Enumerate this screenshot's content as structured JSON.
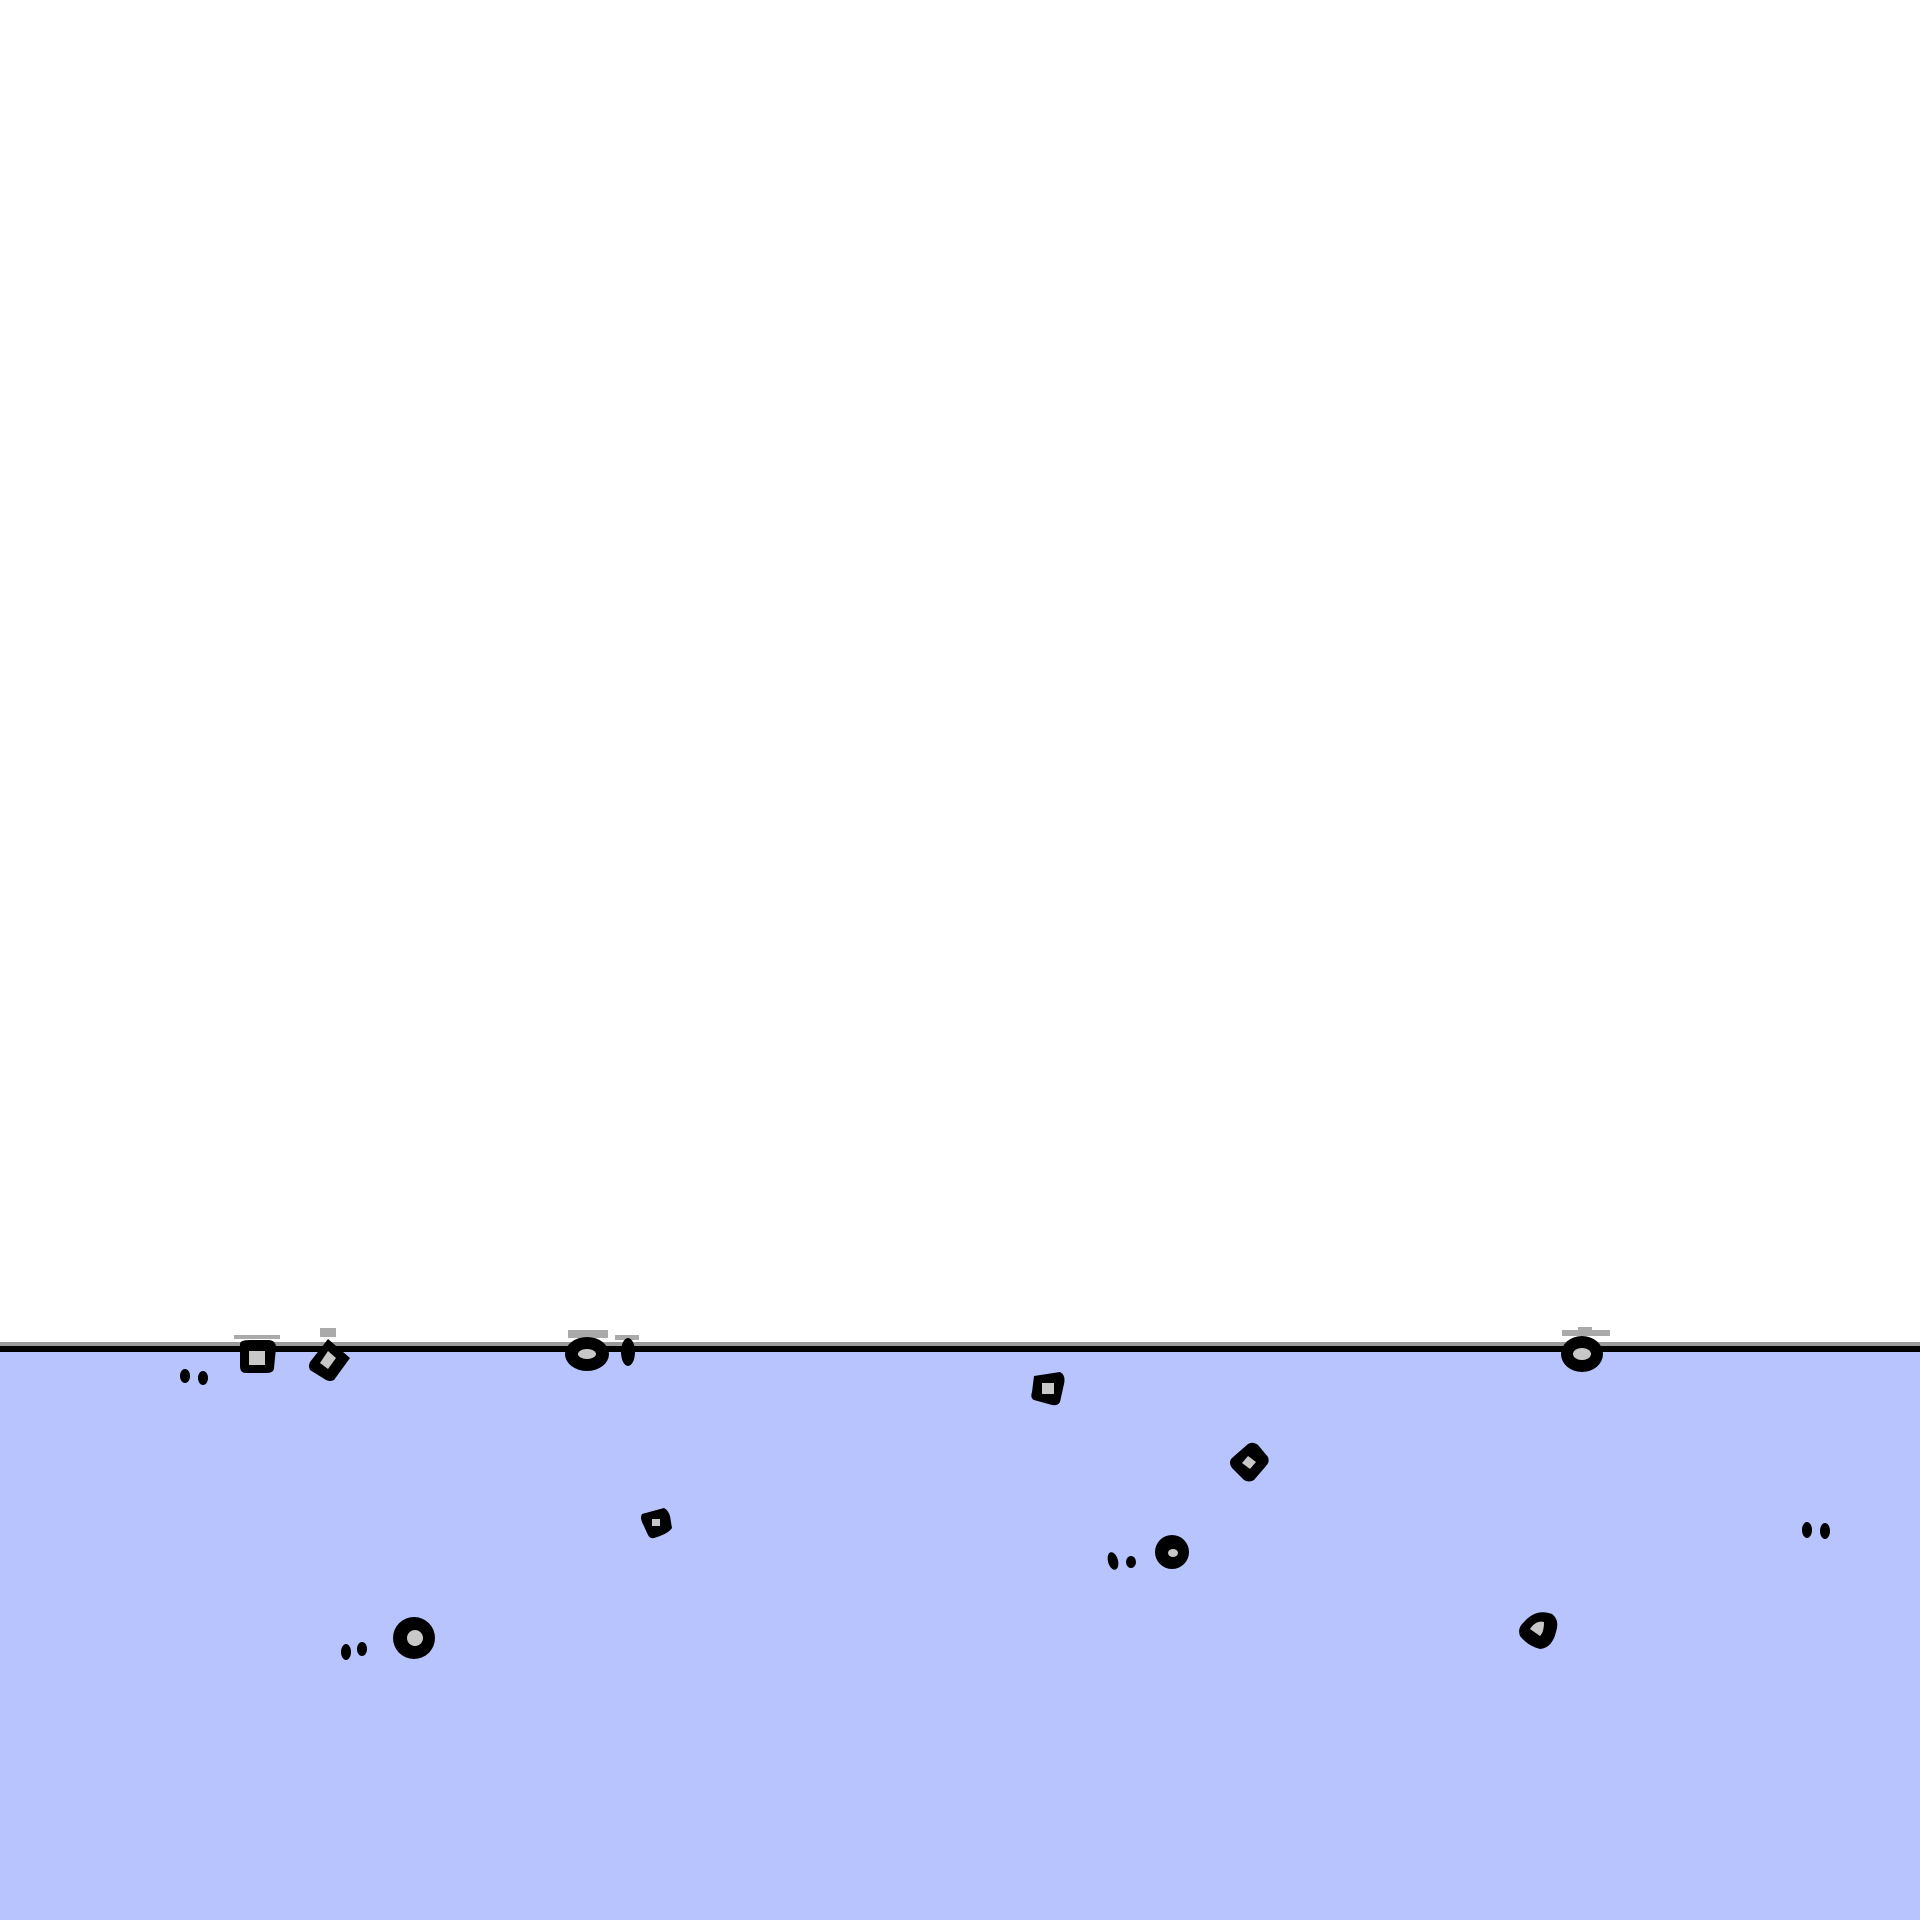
{
  "scene": {
    "sky_color": "#ffffff",
    "water_color": "#b8c4fd",
    "outline_color": "#000000",
    "center_color": "#c8c8c8"
  },
  "objects": [
    {
      "name": "floating-square-creature",
      "kind": "square",
      "state": "floating"
    },
    {
      "name": "floating-diamond-creature",
      "kind": "diamond",
      "state": "floating"
    },
    {
      "name": "floating-oval-creature",
      "kind": "oval",
      "state": "floating"
    },
    {
      "name": "floating-drop-creature",
      "kind": "drop",
      "state": "floating"
    },
    {
      "name": "floating-round-creature",
      "kind": "round",
      "state": "floating"
    },
    {
      "name": "swimming-square-creature",
      "kind": "square",
      "state": "submerged"
    },
    {
      "name": "swimming-diamond-creature",
      "kind": "diamond",
      "state": "submerged"
    },
    {
      "name": "swimming-small-square-creature",
      "kind": "square",
      "state": "submerged"
    },
    {
      "name": "swimming-round-creature",
      "kind": "round",
      "state": "submerged"
    },
    {
      "name": "swimming-large-round-creature",
      "kind": "round",
      "state": "submerged"
    },
    {
      "name": "swimming-heart-creature",
      "kind": "heart",
      "state": "submerged"
    }
  ],
  "eye_pairs": 5
}
